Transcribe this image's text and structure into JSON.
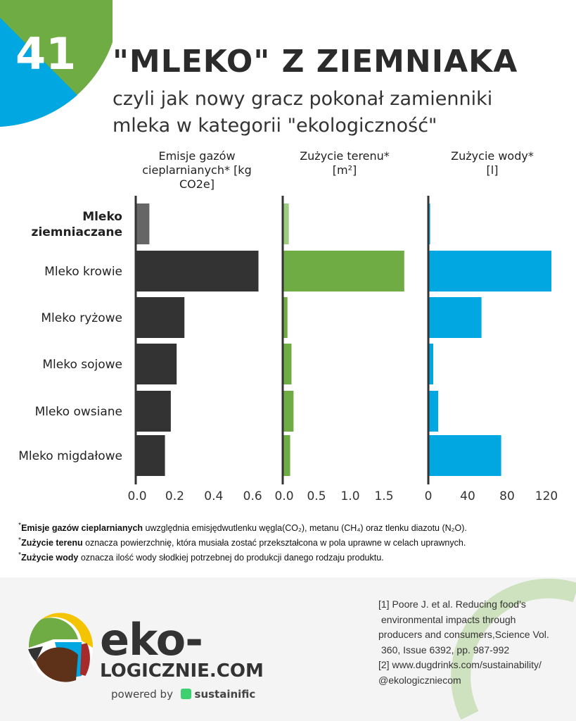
{
  "header": {
    "number": "41",
    "title": "\"MLEKO\" Z ZIEMNIAKA",
    "subtitle_line1": "czyli jak nowy gracz pokonał zamienniki",
    "subtitle_line2": "mleka w kategorii \"ekologiczność\""
  },
  "colors": {
    "emissions": "#333333",
    "emissions_highlight": "#666666",
    "land": "#6fac44",
    "land_highlight": "#9ccc7f",
    "water": "#00a7e1",
    "water_highlight": "#33bbe8",
    "corner_green": "#6fac44",
    "corner_blue": "#00a7e1"
  },
  "chart_data": [
    {
      "type": "bar",
      "orientation": "horizontal",
      "title_line1": "Emisje gazów",
      "title_line2": "cieplarnianych* [kg CO2e]",
      "categories": [
        "Mleko ziemniaczane",
        "Mleko krowie",
        "Mleko ryżowe",
        "Mleko sojowe",
        "Mleko owsiane",
        "Mleko migdałowe"
      ],
      "values": [
        0.07,
        0.63,
        0.25,
        0.21,
        0.18,
        0.15
      ],
      "ticks": [
        "0.0",
        "0.2",
        "0.4",
        "0.6"
      ],
      "tick_values": [
        0,
        0.2,
        0.4,
        0.6
      ],
      "grid": false
    },
    {
      "type": "bar",
      "orientation": "horizontal",
      "title_line1": "Zużycie terenu*",
      "title_line2": "[m²]",
      "categories": [
        "Mleko ziemniaczane",
        "Mleko krowie",
        "Mleko ryżowe",
        "Mleko sojowe",
        "Mleko owsiane",
        "Mleko migdałowe"
      ],
      "values": [
        0.09,
        1.8,
        0.07,
        0.13,
        0.16,
        0.11
      ],
      "ticks": [
        "0.0",
        "0.5",
        "1.0",
        "1.5"
      ],
      "tick_values": [
        0,
        0.5,
        1.0,
        1.5
      ],
      "grid": false
    },
    {
      "type": "bar",
      "orientation": "horizontal",
      "title_line1": "Zużycie wody*",
      "title_line2": "[l]",
      "categories": [
        "Mleko ziemniaczane",
        "Mleko krowie",
        "Mleko ryżowe",
        "Mleko sojowe",
        "Mleko owsiane",
        "Mleko migdałowe"
      ],
      "values": [
        2,
        125,
        54,
        5,
        10,
        74
      ],
      "ticks": [
        "0",
        "40",
        "80",
        "120"
      ],
      "tick_values": [
        0,
        40,
        80,
        120
      ],
      "grid": false
    }
  ],
  "row_labels": [
    "Mleko\nziemniaczane",
    "Mleko krowie",
    "Mleko ryżowe",
    "Mleko sojowe",
    "Mleko owsiane",
    "Mleko migdałowe"
  ],
  "footnotes": {
    "f1_bold": "Emisje gazów cieplarnianych",
    "f1_text": " uwzględnia emisjędwutlenku węgla(CO₂), metanu (CH₄) oraz tlenku diazotu (N₂O).",
    "f2_bold": "Zużycie terenu",
    "f2_text": " oznacza powierzchnię, która musiała zostać przekształcona w pola uprawne w celach uprawnych.",
    "f3_bold": "Zużycie wody",
    "f3_text": " oznacza ilość wody słodkiej potrzebnej do produkcji danego rodzaju produktu.",
    "star": "*"
  },
  "footer": {
    "brand_line1": "eko-",
    "brand_line2": "LOGICZNIE.COM",
    "powered_by": "powered by",
    "partner": "sustainific",
    "refs": [
      "[1] Poore J. et al. Reducing food’s",
      "environmental impacts through",
      "producers and consumers,Science  Vol.",
      "360, Issue 6392, pp. 987-992",
      "[2] www.dugdrinks.com/sustainability/",
      "@ekologiczniecom"
    ]
  }
}
